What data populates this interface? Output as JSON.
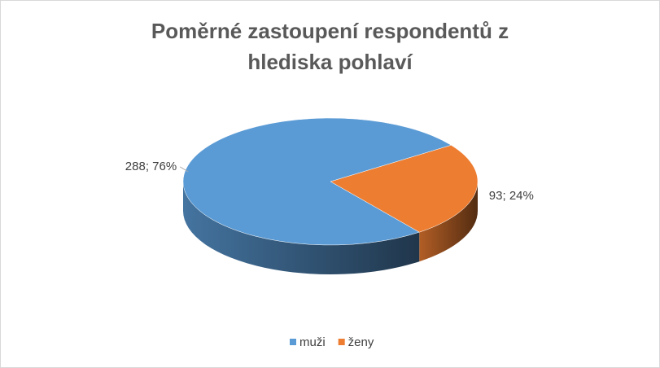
{
  "chart_data": {
    "type": "pie3d",
    "title": "Poměrné zastoupení respondentů z hlediska pohlaví",
    "categories": [
      "muži",
      "ženy"
    ],
    "values": [
      288,
      93
    ],
    "value_labels": [
      "288; 76%",
      "93; 24%"
    ],
    "colors": [
      "#5b9bd5",
      "#ed7d31"
    ],
    "legend": "bottom"
  }
}
